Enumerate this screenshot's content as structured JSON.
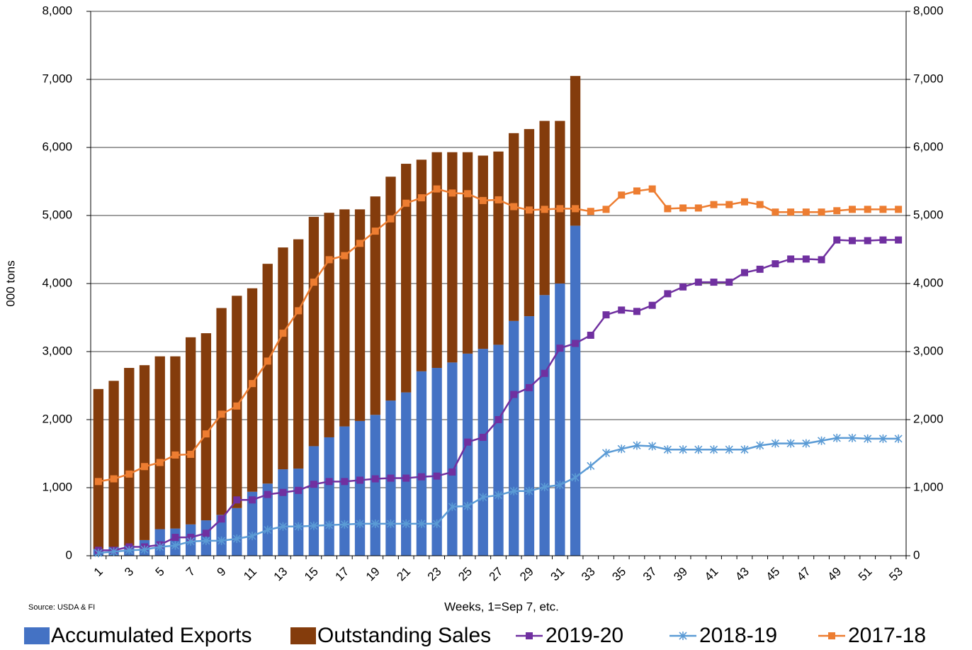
{
  "chart_data": {
    "type": "combo",
    "y_label": "000 tons",
    "x_label": "Weeks, 1=Sep 7, etc.",
    "annotation": "Source: USDA & FI",
    "categories": [
      "1",
      null,
      "3",
      null,
      "5",
      null,
      "7",
      null,
      "9",
      null,
      "11",
      null,
      "13",
      null,
      "15",
      null,
      "17",
      null,
      "19",
      null,
      "21",
      null,
      "23",
      null,
      "25",
      null,
      "27",
      null,
      "29",
      null,
      "31",
      null,
      "33",
      null,
      "35",
      null,
      "37",
      null,
      "39",
      null,
      "41",
      null,
      "43",
      null,
      "45",
      null,
      "47",
      null,
      "49",
      null,
      "51",
      null,
      "53"
    ],
    "ylim": [
      0,
      8000
    ],
    "yticks": [
      0,
      {
        "value": 1000,
        "label": "1,000"
      },
      {
        "value": 2000,
        "label": "2,000"
      },
      {
        "value": 3000,
        "label": "3,000"
      },
      {
        "value": 4000,
        "label": "4,000"
      },
      {
        "value": 5000,
        "label": "5,000"
      },
      {
        "value": 6000,
        "label": "6,000"
      },
      {
        "value": 7000,
        "label": "7,000"
      },
      {
        "value": 8000,
        "label": "8,000"
      }
    ],
    "y2lim": [
      0,
      8000
    ],
    "y2ticks": [
      0,
      {
        "value": 1000,
        "label": "1,000"
      },
      {
        "value": 2000,
        "label": "2,000"
      },
      {
        "value": 3000,
        "label": "3,000"
      },
      {
        "value": 4000,
        "label": "4,000"
      },
      {
        "value": 5000,
        "label": "5,000"
      },
      {
        "value": 6000,
        "label": "6,000"
      },
      {
        "value": 7000,
        "label": "7,000"
      },
      {
        "value": 8000,
        "label": "8,000"
      }
    ],
    "grid": true,
    "stacked": true,
    "legend": "bottom",
    "series": [
      {
        "name": "Accumulated Exports",
        "kind": "bar",
        "color": "#4472c4",
        "values": [
          100,
          130,
          150,
          230,
          390,
          400,
          460,
          520,
          600,
          700,
          940,
          1060,
          1270,
          1280,
          1610,
          1740,
          1900,
          1980,
          2070,
          2280,
          2400,
          2710,
          2760,
          2840,
          2970,
          3040,
          3100,
          3450,
          3520,
          3830,
          4000,
          4850,
          null,
          null,
          null,
          null,
          null,
          null,
          null,
          null,
          null,
          null,
          null,
          null,
          null,
          null,
          null,
          null,
          null,
          null,
          null,
          null,
          null
        ]
      },
      {
        "name": "Outstanding Sales",
        "kind": "bar",
        "color": "#843c0c",
        "values": [
          2350,
          2440,
          2610,
          2570,
          2540,
          2530,
          2750,
          2750,
          3040,
          3120,
          2990,
          3230,
          3260,
          3370,
          3370,
          3300,
          3190,
          3110,
          3210,
          3290,
          3360,
          3110,
          3170,
          3090,
          2960,
          2840,
          2840,
          2760,
          2750,
          2560,
          2390,
          2200,
          null,
          null,
          null,
          null,
          null,
          null,
          null,
          null,
          null,
          null,
          null,
          null,
          null,
          null,
          null,
          null,
          null,
          null,
          null,
          null,
          null
        ]
      },
      {
        "name": "2019-20",
        "kind": "line",
        "marker": "square",
        "color": "#7030a0",
        "values": [
          80,
          80,
          130,
          130,
          160,
          270,
          270,
          330,
          540,
          820,
          820,
          900,
          930,
          960,
          1050,
          1090,
          1090,
          1110,
          1130,
          1140,
          1140,
          1160,
          1170,
          1230,
          1670,
          1740,
          2000,
          2370,
          2470,
          2680,
          3050,
          3120,
          3240,
          3540,
          3610,
          3590,
          3680,
          3850,
          3950,
          4020,
          4020,
          4020,
          4160,
          4210,
          4290,
          4360,
          4360,
          4350,
          4640,
          4630,
          4630,
          4640,
          4640
        ]
      },
      {
        "name": "2018-19",
        "kind": "line",
        "marker": "star",
        "color": "#5b9bd5",
        "values": [
          40,
          60,
          80,
          90,
          130,
          150,
          210,
          220,
          220,
          250,
          290,
          380,
          430,
          430,
          440,
          450,
          460,
          470,
          470,
          470,
          470,
          470,
          470,
          720,
          730,
          860,
          890,
          950,
          950,
          1010,
          1040,
          1150,
          1320,
          1510,
          1570,
          1620,
          1610,
          1560,
          1560,
          1560,
          1560,
          1560,
          1560,
          1620,
          1650,
          1650,
          1650,
          1690,
          1730,
          1730,
          1720,
          1720,
          1720
        ]
      },
      {
        "name": "2017-18",
        "kind": "line",
        "marker": "square",
        "color": "#ed7d31",
        "values": [
          1090,
          1130,
          1200,
          1310,
          1370,
          1480,
          1490,
          1790,
          2080,
          2200,
          2530,
          2860,
          3270,
          3600,
          4020,
          4350,
          4410,
          4590,
          4770,
          4950,
          5180,
          5260,
          5390,
          5330,
          5320,
          5220,
          5230,
          5130,
          5080,
          5090,
          5100,
          5100,
          5060,
          5090,
          5300,
          5360,
          5390,
          5100,
          5110,
          5110,
          5160,
          5160,
          5200,
          5160,
          5050,
          5050,
          5050,
          5050,
          5070,
          5090,
          5090,
          5090,
          5090
        ]
      }
    ]
  }
}
